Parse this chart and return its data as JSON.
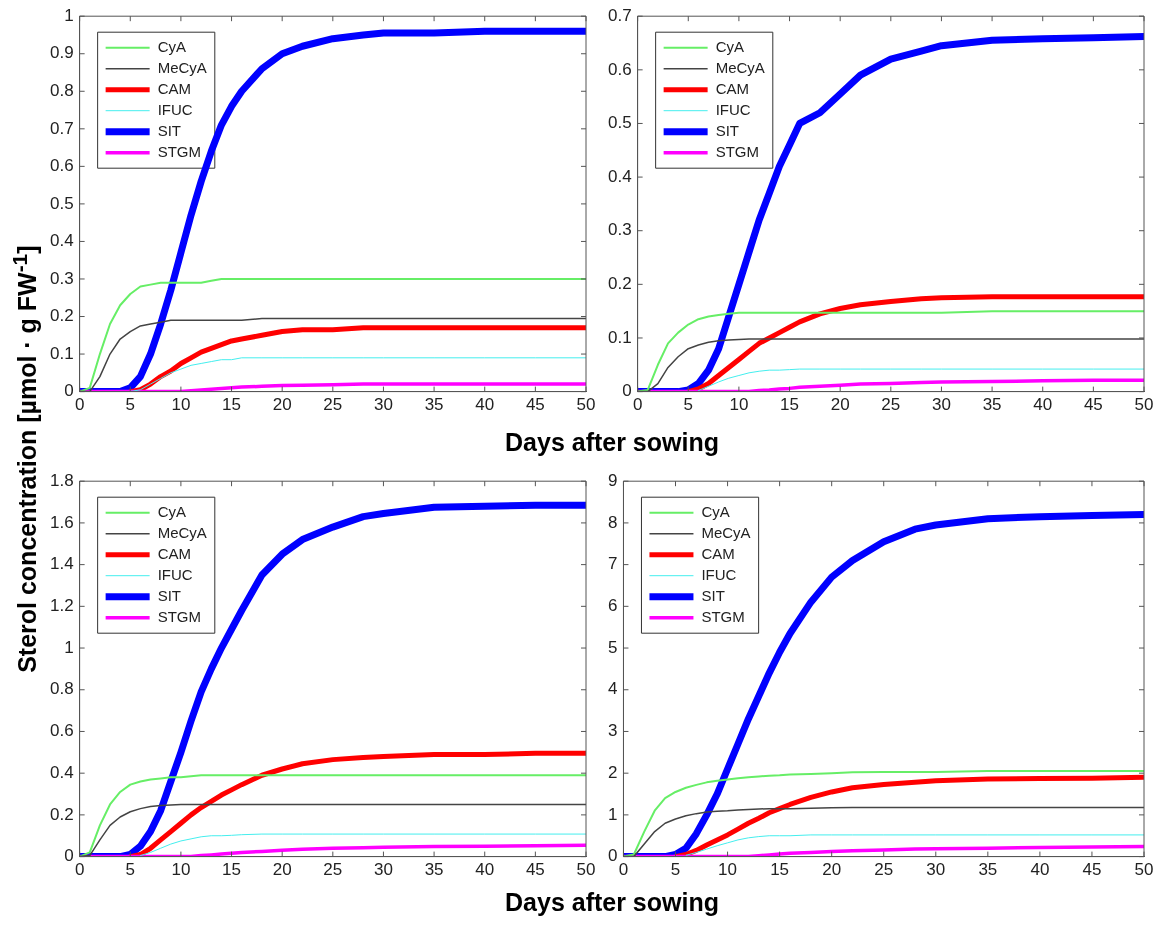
{
  "chart_data": [
    {
      "type": "line",
      "xlabel": "Days after sowing",
      "ylabel": "Sterol concentration [µmol · g FW$^{-1}$]",
      "legend": "top left",
      "grid": false,
      "marker": "none",
      "line_style": "solid",
      "x": [
        0,
        1,
        2,
        3,
        4,
        5,
        6,
        7,
        8,
        9,
        10,
        11,
        12,
        13,
        14,
        15,
        16,
        18,
        20,
        22,
        25,
        28,
        30,
        35,
        40,
        45,
        50
      ],
      "xlim": [
        0,
        50
      ],
      "xticks": [
        0,
        5,
        10,
        15,
        20,
        25,
        30,
        35,
        40,
        45,
        50
      ],
      "ylim": [
        0,
        1
      ],
      "yticks": [
        0,
        0.1,
        0.2,
        0.3,
        0.4,
        0.5,
        0.6,
        0.7,
        0.8,
        0.9,
        1
      ],
      "series": [
        {
          "name": "CyA",
          "color": "#66ee66",
          "values": [
            0,
            0.01,
            0.1,
            0.18,
            0.23,
            0.26,
            0.28,
            0.285,
            0.29,
            0.29,
            0.29,
            0.29,
            0.29,
            0.295,
            0.3,
            0.3,
            0.3,
            0.3,
            0.3,
            0.3,
            0.3,
            0.3,
            0.3,
            0.3,
            0.3,
            0.3,
            0.3
          ]
        },
        {
          "name": "MeCyA",
          "color": "#444444",
          "values": [
            0,
            0,
            0.04,
            0.1,
            0.14,
            0.16,
            0.175,
            0.18,
            0.185,
            0.19,
            0.19,
            0.19,
            0.19,
            0.19,
            0.19,
            0.19,
            0.19,
            0.195,
            0.195,
            0.195,
            0.195,
            0.195,
            0.195,
            0.195,
            0.195,
            0.195,
            0.195
          ]
        },
        {
          "name": "CAM",
          "color": "#ff0000",
          "values": [
            null,
            null,
            null,
            null,
            null,
            0,
            0.005,
            0.02,
            0.04,
            0.055,
            0.075,
            0.09,
            0.105,
            0.115,
            0.125,
            0.135,
            0.14,
            0.15,
            0.16,
            0.165,
            0.165,
            0.17,
            0.17,
            0.17,
            0.17,
            0.17,
            0.17
          ]
        },
        {
          "name": "IFUC",
          "color": "#44eeee",
          "values": [
            null,
            null,
            null,
            null,
            null,
            0,
            0.005,
            0.02,
            0.035,
            0.05,
            0.06,
            0.07,
            0.075,
            0.08,
            0.085,
            0.085,
            0.09,
            0.09,
            0.09,
            0.09,
            0.09,
            0.09,
            0.09,
            0.09,
            0.09,
            0.09,
            0.09
          ]
        },
        {
          "name": "SIT",
          "color": "#0000ff",
          "values": [
            0,
            0,
            0,
            0,
            0,
            0.01,
            0.04,
            0.1,
            0.18,
            0.27,
            0.37,
            0.47,
            0.56,
            0.64,
            0.71,
            0.76,
            0.8,
            0.86,
            0.9,
            0.92,
            0.94,
            0.95,
            0.955,
            0.955,
            0.96,
            0.96,
            0.96
          ]
        },
        {
          "name": "STGM",
          "color": "#ff00ff",
          "values": [
            0,
            0,
            0,
            0,
            0,
            0,
            0,
            0,
            0,
            0,
            0,
            0.002,
            0.004,
            0.006,
            0.008,
            0.01,
            0.012,
            0.014,
            0.016,
            0.017,
            0.018,
            0.02,
            0.02,
            0.02,
            0.02,
            0.02,
            0.02
          ]
        }
      ]
    },
    {
      "type": "line",
      "legend": "top left",
      "grid": false,
      "marker": "none",
      "line_style": "solid",
      "x": [
        0,
        1,
        2,
        3,
        4,
        5,
        6,
        7,
        8,
        9,
        10,
        11,
        12,
        13,
        14,
        15,
        16,
        18,
        20,
        22,
        25,
        28,
        30,
        35,
        40,
        45,
        50
      ],
      "xlim": [
        0,
        50
      ],
      "xticks": [
        0,
        5,
        10,
        15,
        20,
        25,
        30,
        35,
        40,
        45,
        50
      ],
      "ylim": [
        0,
        0.7
      ],
      "yticks": [
        0,
        0.1,
        0.2,
        0.3,
        0.4,
        0.5,
        0.6,
        0.7
      ],
      "series": [
        {
          "name": "CyA",
          "color": "#66ee66",
          "values": [
            0,
            0.003,
            0.05,
            0.09,
            0.11,
            0.125,
            0.135,
            0.14,
            0.143,
            0.145,
            0.147,
            0.147,
            0.147,
            0.147,
            0.147,
            0.147,
            0.147,
            0.147,
            0.147,
            0.147,
            0.147,
            0.147,
            0.147,
            0.15,
            0.15,
            0.15,
            0.15
          ]
        },
        {
          "name": "MeCyA",
          "color": "#444444",
          "values": [
            0,
            0,
            0.015,
            0.045,
            0.065,
            0.08,
            0.087,
            0.092,
            0.095,
            0.096,
            0.097,
            0.098,
            0.098,
            0.098,
            0.098,
            0.098,
            0.098,
            0.098,
            0.098,
            0.098,
            0.098,
            0.098,
            0.098,
            0.098,
            0.098,
            0.098,
            0.098
          ]
        },
        {
          "name": "CAM",
          "color": "#ff0000",
          "values": [
            null,
            null,
            null,
            null,
            null,
            0,
            0.005,
            0.015,
            0.03,
            0.045,
            0.06,
            0.075,
            0.09,
            0.1,
            0.11,
            0.12,
            0.13,
            0.145,
            0.155,
            0.162,
            0.168,
            0.173,
            0.175,
            0.177,
            0.177,
            0.177,
            0.177
          ]
        },
        {
          "name": "IFUC",
          "color": "#44eeee",
          "values": [
            null,
            null,
            null,
            null,
            null,
            null,
            0.002,
            0.01,
            0.018,
            0.025,
            0.03,
            0.035,
            0.038,
            0.04,
            0.04,
            0.041,
            0.042,
            0.042,
            0.042,
            0.042,
            0.042,
            0.042,
            0.042,
            0.042,
            0.042,
            0.042,
            0.042
          ]
        },
        {
          "name": "SIT",
          "color": "#0000ff",
          "values": [
            0,
            0,
            0,
            0,
            0,
            0.003,
            0.015,
            0.04,
            0.08,
            0.14,
            0.2,
            0.26,
            0.32,
            0.37,
            0.42,
            0.46,
            0.5,
            0.52,
            0.555,
            0.59,
            0.62,
            0.635,
            0.645,
            0.655,
            0.658,
            0.66,
            0.662
          ]
        },
        {
          "name": "STGM",
          "color": "#ff00ff",
          "values": [
            0,
            0,
            0,
            0,
            0,
            0,
            0,
            0,
            0,
            0,
            0,
            0,
            0.002,
            0.003,
            0.005,
            0.006,
            0.008,
            0.01,
            0.012,
            0.014,
            0.015,
            0.017,
            0.018,
            0.019,
            0.02,
            0.021,
            0.021
          ]
        }
      ]
    },
    {
      "type": "line",
      "xlabel": "Days after sowing",
      "legend": "top left",
      "grid": false,
      "marker": "none",
      "line_style": "solid",
      "x": [
        0,
        1,
        2,
        3,
        4,
        5,
        6,
        7,
        8,
        9,
        10,
        11,
        12,
        13,
        14,
        15,
        16,
        18,
        20,
        22,
        25,
        28,
        30,
        35,
        40,
        45,
        50
      ],
      "xlim": [
        0,
        50
      ],
      "xticks": [
        0,
        5,
        10,
        15,
        20,
        25,
        30,
        35,
        40,
        45,
        50
      ],
      "ylim": [
        0,
        1.8
      ],
      "yticks": [
        0,
        0.2,
        0.4,
        0.6,
        0.8,
        1,
        1.2,
        1.4,
        1.6,
        1.8
      ],
      "series": [
        {
          "name": "CyA",
          "color": "#66ee66",
          "values": [
            0,
            0.02,
            0.15,
            0.25,
            0.31,
            0.345,
            0.36,
            0.37,
            0.375,
            0.38,
            0.38,
            0.385,
            0.39,
            0.39,
            0.39,
            0.39,
            0.39,
            0.39,
            0.39,
            0.39,
            0.39,
            0.39,
            0.39,
            0.39,
            0.39,
            0.39,
            0.39
          ]
        },
        {
          "name": "MeCyA",
          "color": "#444444",
          "values": [
            0,
            0.005,
            0.08,
            0.15,
            0.19,
            0.215,
            0.23,
            0.24,
            0.245,
            0.248,
            0.25,
            0.25,
            0.25,
            0.25,
            0.25,
            0.25,
            0.25,
            0.25,
            0.25,
            0.25,
            0.25,
            0.25,
            0.25,
            0.25,
            0.25,
            0.25,
            0.25
          ]
        },
        {
          "name": "CAM",
          "color": "#ff0000",
          "values": [
            null,
            null,
            null,
            null,
            null,
            0,
            0.01,
            0.04,
            0.08,
            0.12,
            0.16,
            0.2,
            0.235,
            0.265,
            0.295,
            0.32,
            0.345,
            0.39,
            0.42,
            0.445,
            0.465,
            0.475,
            0.48,
            0.49,
            0.49,
            0.495,
            0.495
          ]
        },
        {
          "name": "IFUC",
          "color": "#44eeee",
          "values": [
            null,
            null,
            null,
            null,
            null,
            null,
            0.005,
            0.02,
            0.04,
            0.06,
            0.075,
            0.085,
            0.095,
            0.1,
            0.1,
            0.102,
            0.105,
            0.108,
            0.108,
            0.108,
            0.108,
            0.108,
            0.108,
            0.108,
            0.108,
            0.108,
            0.108
          ]
        },
        {
          "name": "SIT",
          "color": "#0000ff",
          "values": [
            0,
            0,
            0,
            0,
            0,
            0.01,
            0.05,
            0.12,
            0.22,
            0.36,
            0.5,
            0.65,
            0.79,
            0.9,
            1,
            1.09,
            1.18,
            1.35,
            1.45,
            1.52,
            1.58,
            1.63,
            1.645,
            1.675,
            1.68,
            1.685,
            1.685
          ]
        },
        {
          "name": "STGM",
          "color": "#ff00ff",
          "values": [
            0,
            0,
            0,
            0,
            0,
            0,
            0,
            0,
            0,
            0,
            0,
            0,
            0.005,
            0.008,
            0.012,
            0.016,
            0.02,
            0.025,
            0.03,
            0.035,
            0.04,
            0.043,
            0.045,
            0.048,
            0.05,
            0.052,
            0.055
          ]
        }
      ]
    },
    {
      "type": "line",
      "legend": "top left",
      "grid": false,
      "marker": "none",
      "line_style": "solid",
      "x": [
        0,
        1,
        2,
        3,
        4,
        5,
        6,
        7,
        8,
        9,
        10,
        11,
        12,
        13,
        14,
        15,
        16,
        18,
        20,
        22,
        25,
        28,
        30,
        35,
        40,
        45,
        50
      ],
      "xlim": [
        0,
        50
      ],
      "xticks": [
        0,
        5,
        10,
        15,
        20,
        25,
        30,
        35,
        40,
        45,
        50
      ],
      "ylim": [
        0,
        9
      ],
      "yticks": [
        0,
        1,
        2,
        3,
        4,
        5,
        6,
        7,
        8,
        9
      ],
      "series": [
        {
          "name": "CyA",
          "color": "#66ee66",
          "values": [
            0,
            0.05,
            0.6,
            1.1,
            1.4,
            1.55,
            1.65,
            1.72,
            1.78,
            1.82,
            1.85,
            1.88,
            1.9,
            1.92,
            1.94,
            1.95,
            1.97,
            1.98,
            2,
            2.02,
            2.03,
            2.03,
            2.03,
            2.05,
            2.05,
            2.05,
            2.05
          ]
        },
        {
          "name": "MeCyA",
          "color": "#444444",
          "values": [
            0,
            0,
            0.3,
            0.6,
            0.8,
            0.9,
            0.98,
            1.03,
            1.07,
            1.09,
            1.1,
            1.12,
            1.13,
            1.14,
            1.15,
            1.15,
            1.15,
            1.16,
            1.17,
            1.18,
            1.18,
            1.18,
            1.18,
            1.18,
            1.18,
            1.18,
            1.18
          ]
        },
        {
          "name": "CAM",
          "color": "#ff0000",
          "values": [
            null,
            null,
            null,
            null,
            null,
            0,
            0.05,
            0.15,
            0.28,
            0.4,
            0.52,
            0.66,
            0.8,
            0.92,
            1.05,
            1.15,
            1.25,
            1.42,
            1.55,
            1.65,
            1.73,
            1.78,
            1.82,
            1.86,
            1.87,
            1.88,
            1.9
          ]
        },
        {
          "name": "IFUC",
          "color": "#44eeee",
          "values": [
            null,
            null,
            null,
            null,
            null,
            null,
            0.03,
            0.1,
            0.18,
            0.26,
            0.33,
            0.4,
            0.45,
            0.48,
            0.5,
            0.5,
            0.5,
            0.52,
            0.52,
            0.52,
            0.52,
            0.52,
            0.52,
            0.52,
            0.52,
            0.52,
            0.52
          ]
        },
        {
          "name": "SIT",
          "color": "#0000ff",
          "values": [
            0,
            0,
            0,
            0,
            0,
            0.05,
            0.2,
            0.55,
            1,
            1.5,
            2.1,
            2.7,
            3.3,
            3.85,
            4.4,
            4.9,
            5.35,
            6.1,
            6.7,
            7.1,
            7.55,
            7.85,
            7.95,
            8.1,
            8.15,
            8.18,
            8.2
          ]
        },
        {
          "name": "STGM",
          "color": "#ff00ff",
          "values": [
            0,
            0,
            0,
            0,
            0,
            0,
            0,
            0,
            0,
            0,
            0,
            0,
            0,
            0.02,
            0.04,
            0.06,
            0.08,
            0.1,
            0.12,
            0.14,
            0.16,
            0.18,
            0.19,
            0.2,
            0.22,
            0.23,
            0.24
          ]
        }
      ]
    }
  ]
}
